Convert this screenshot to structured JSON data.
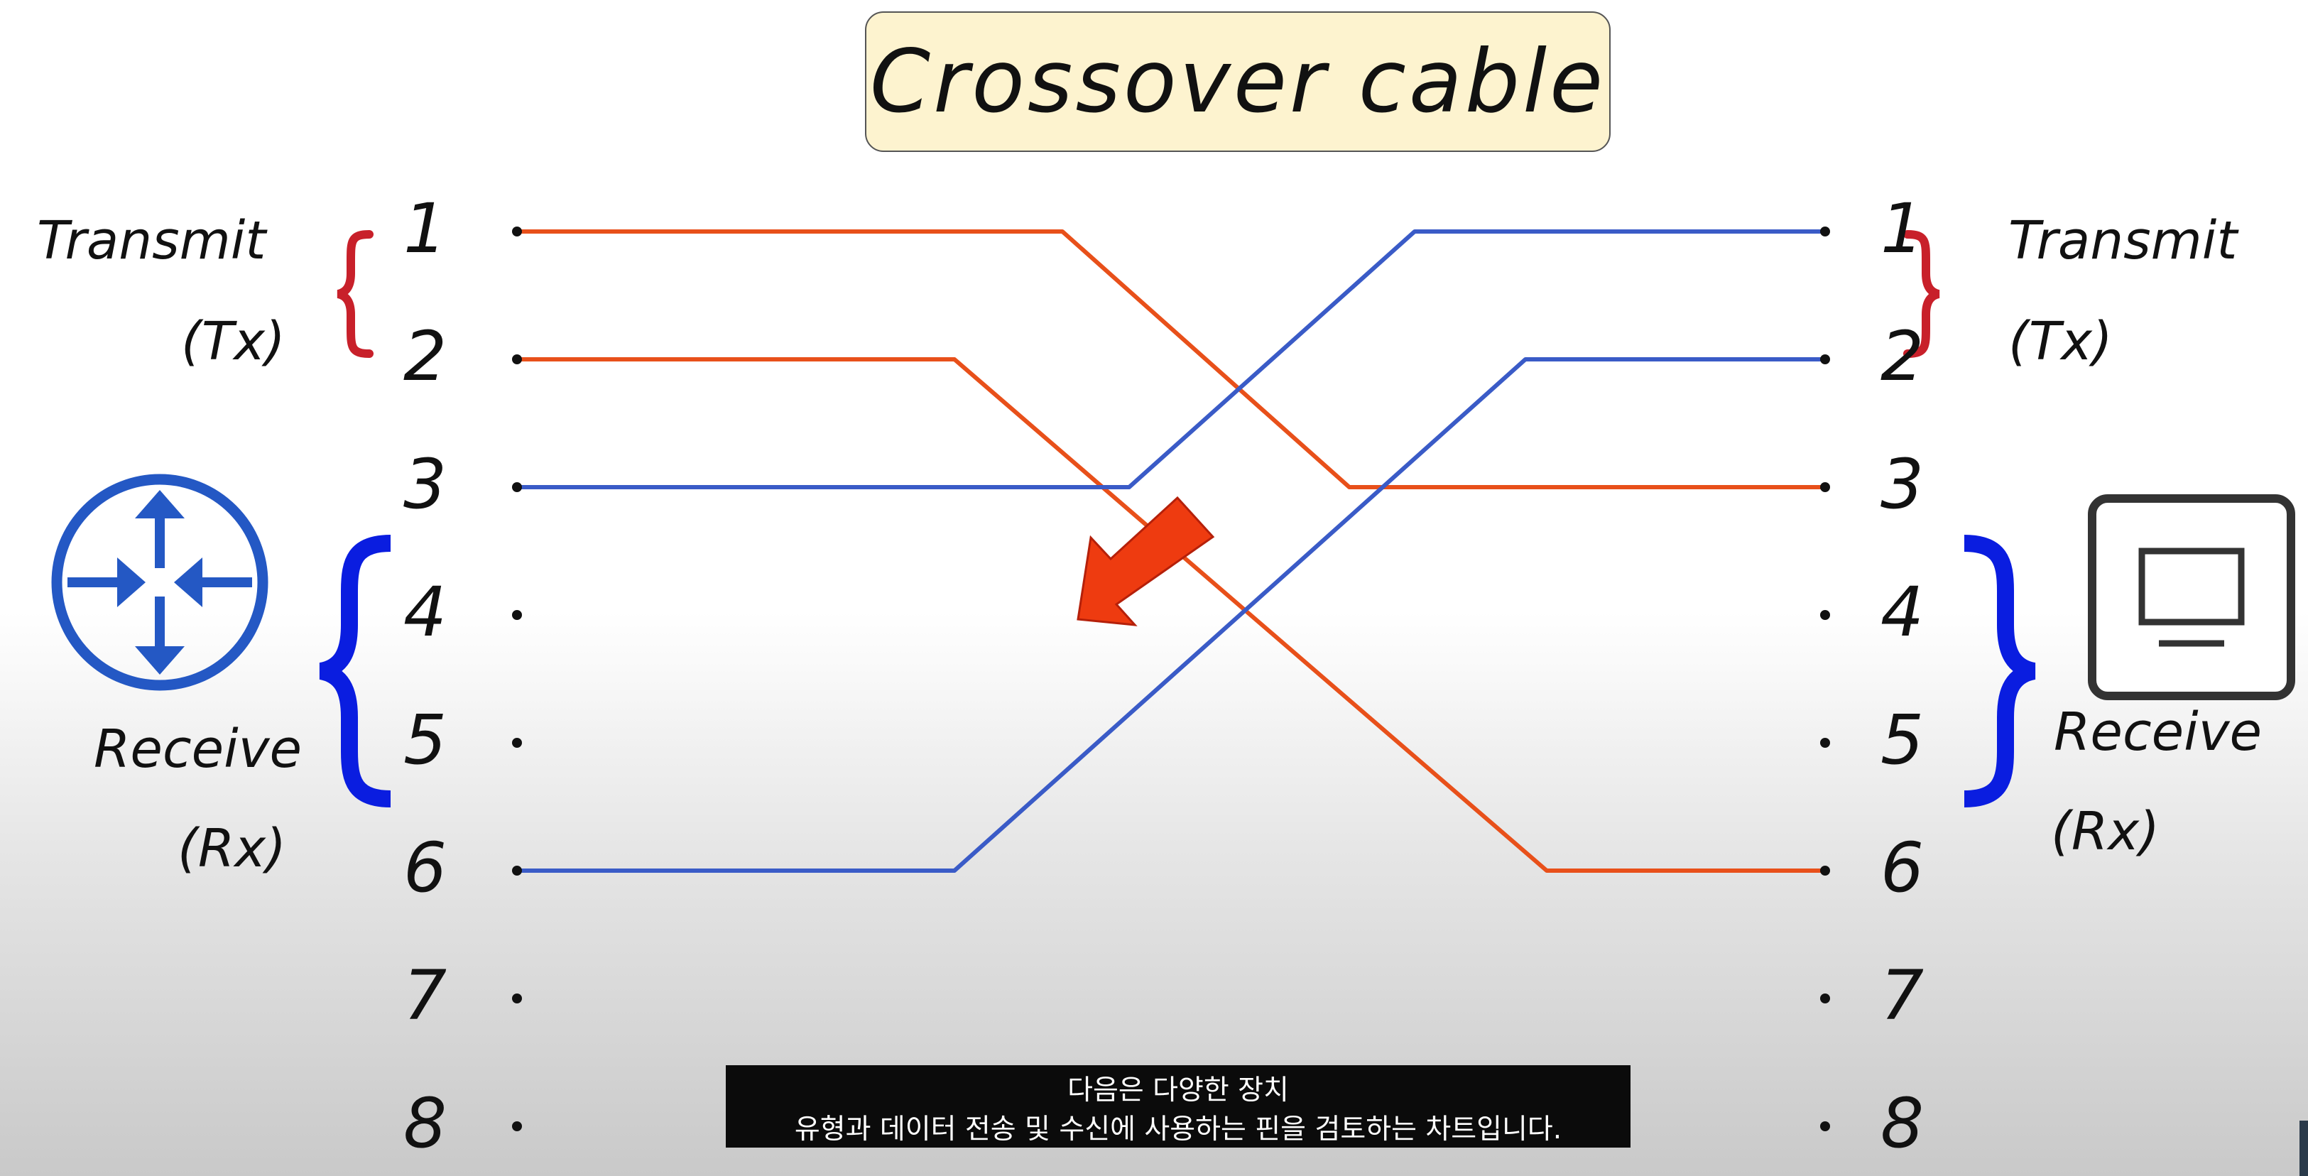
{
  "title": "Crossover cable",
  "left_side": {
    "transmit_label": "Transmit",
    "transmit_abbr": "(Tx)",
    "receive_label": "Receive",
    "receive_abbr": "(Rx)",
    "device_icon": "router-icon"
  },
  "right_side": {
    "transmit_label": "Transmit",
    "transmit_abbr": "(Tx)",
    "receive_label": "Receive",
    "receive_abbr": "(Rx)",
    "device_icon": "pc-icon"
  },
  "pins": [
    "1",
    "2",
    "3",
    "4",
    "5",
    "6",
    "7",
    "8"
  ],
  "wires": [
    {
      "from": 1,
      "to": 3,
      "color": "#e8501a"
    },
    {
      "from": 2,
      "to": 6,
      "color": "#e8501a"
    },
    {
      "from": 3,
      "to": 1,
      "color": "#3a5bc7"
    },
    {
      "from": 6,
      "to": 2,
      "color": "#3a5bc7"
    }
  ],
  "colors": {
    "tx_brace": "#c8202a",
    "rx_brace": "#0a1de0",
    "router": "#2458c4",
    "arrow": "#ee3b10",
    "title_bg": "#fdf3cf"
  },
  "subtitle": {
    "line1": "다음은 다양한 장치",
    "line2": "유형과 데이터 전송 및 수신에 사용하는 핀을 검토하는 차트입니다."
  }
}
